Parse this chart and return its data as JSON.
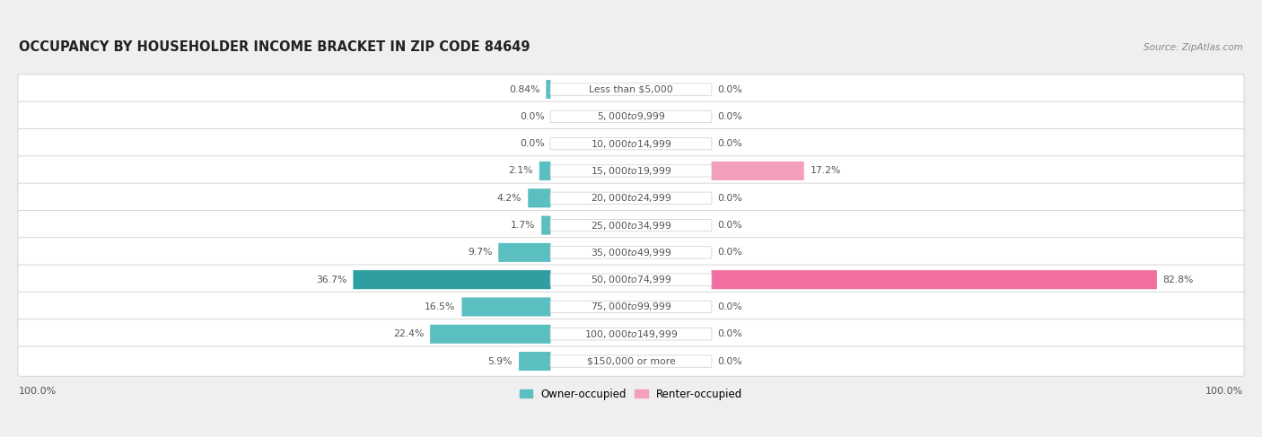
{
  "title": "OCCUPANCY BY HOUSEHOLDER INCOME BRACKET IN ZIP CODE 84649",
  "source": "Source: ZipAtlas.com",
  "categories": [
    "Less than $5,000",
    "$5,000 to $9,999",
    "$10,000 to $14,999",
    "$15,000 to $19,999",
    "$20,000 to $24,999",
    "$25,000 to $34,999",
    "$35,000 to $49,999",
    "$50,000 to $74,999",
    "$75,000 to $99,999",
    "$100,000 to $149,999",
    "$150,000 or more"
  ],
  "owner_values": [
    0.84,
    0.0,
    0.0,
    2.1,
    4.2,
    1.7,
    9.7,
    36.7,
    16.5,
    22.4,
    5.9
  ],
  "renter_values": [
    0.0,
    0.0,
    0.0,
    17.2,
    0.0,
    0.0,
    0.0,
    82.8,
    0.0,
    0.0,
    0.0
  ],
  "owner_color": "#5bbfc2",
  "owner_color_dark": "#2e9ea1",
  "renter_color": "#f4a0bc",
  "renter_color_dark": "#f06fa0",
  "bg_color": "#efefef",
  "row_bg_light": "#f7f7f7",
  "row_bg_dark": "#e8e8e8",
  "label_color": "#555555",
  "title_color": "#222222",
  "source_color": "#888888",
  "legend_labels": [
    "Owner-occupied",
    "Renter-occupied"
  ],
  "legend_colors": [
    "#5bbfc2",
    "#f4a0bc"
  ]
}
